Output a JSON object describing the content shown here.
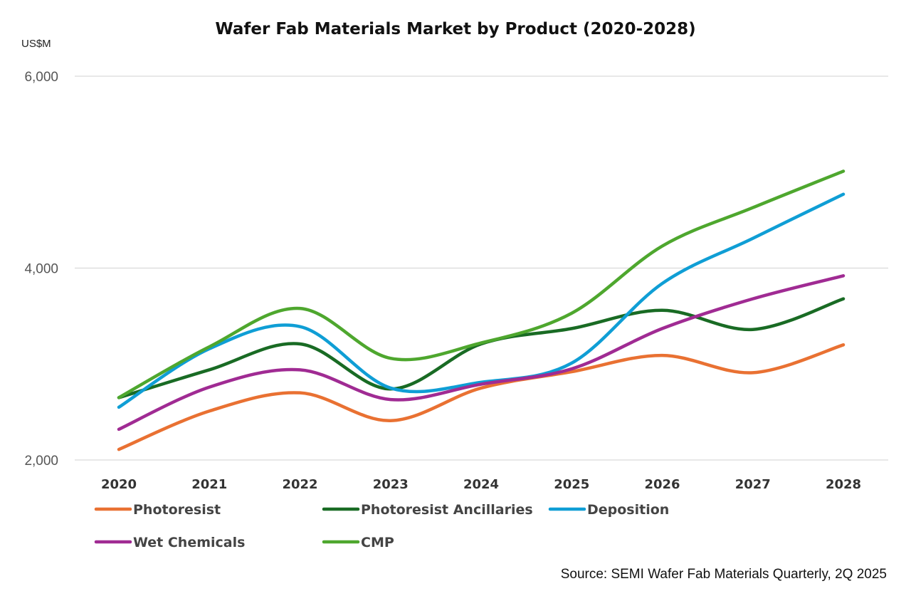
{
  "chart_data": {
    "type": "line",
    "title": "Wafer Fab Materials Market by Product (2020-2028)",
    "ylabel": "US$M",
    "xlabel": "",
    "categories": [
      "2020",
      "2021",
      "2022",
      "2023",
      "2024",
      "2025",
      "2026",
      "2027",
      "2028"
    ],
    "ylim": [
      2000,
      6000
    ],
    "yticks": [
      "2,000",
      "4,000",
      "6,000"
    ],
    "ytick_values": [
      2000,
      4000,
      6000
    ],
    "grid": true,
    "smooth": true,
    "legend_position": "bottom",
    "series": [
      {
        "name": "Photoresist",
        "color": "#E97132",
        "values": [
          2110,
          2510,
          2700,
          2410,
          2750,
          2920,
          3090,
          2910,
          3200
        ]
      },
      {
        "name": "Photoresist Ancillaries",
        "color": "#196B24",
        "values": [
          2650,
          2940,
          3210,
          2740,
          3210,
          3370,
          3560,
          3360,
          3680
        ]
      },
      {
        "name": "Deposition",
        "color": "#0F9ED5",
        "values": [
          2550,
          3160,
          3390,
          2750,
          2810,
          3010,
          3840,
          4310,
          4770
        ]
      },
      {
        "name": "Wet Chemicals",
        "color": "#A02B93",
        "values": [
          2320,
          2760,
          2940,
          2630,
          2790,
          2950,
          3370,
          3680,
          3920
        ]
      },
      {
        "name": "CMP",
        "color": "#4EA72E",
        "values": [
          2650,
          3180,
          3580,
          3060,
          3220,
          3530,
          4230,
          4630,
          5010
        ]
      }
    ],
    "source": "Source: SEMI Wafer Fab Materials Quarterly, 2Q 2025"
  }
}
